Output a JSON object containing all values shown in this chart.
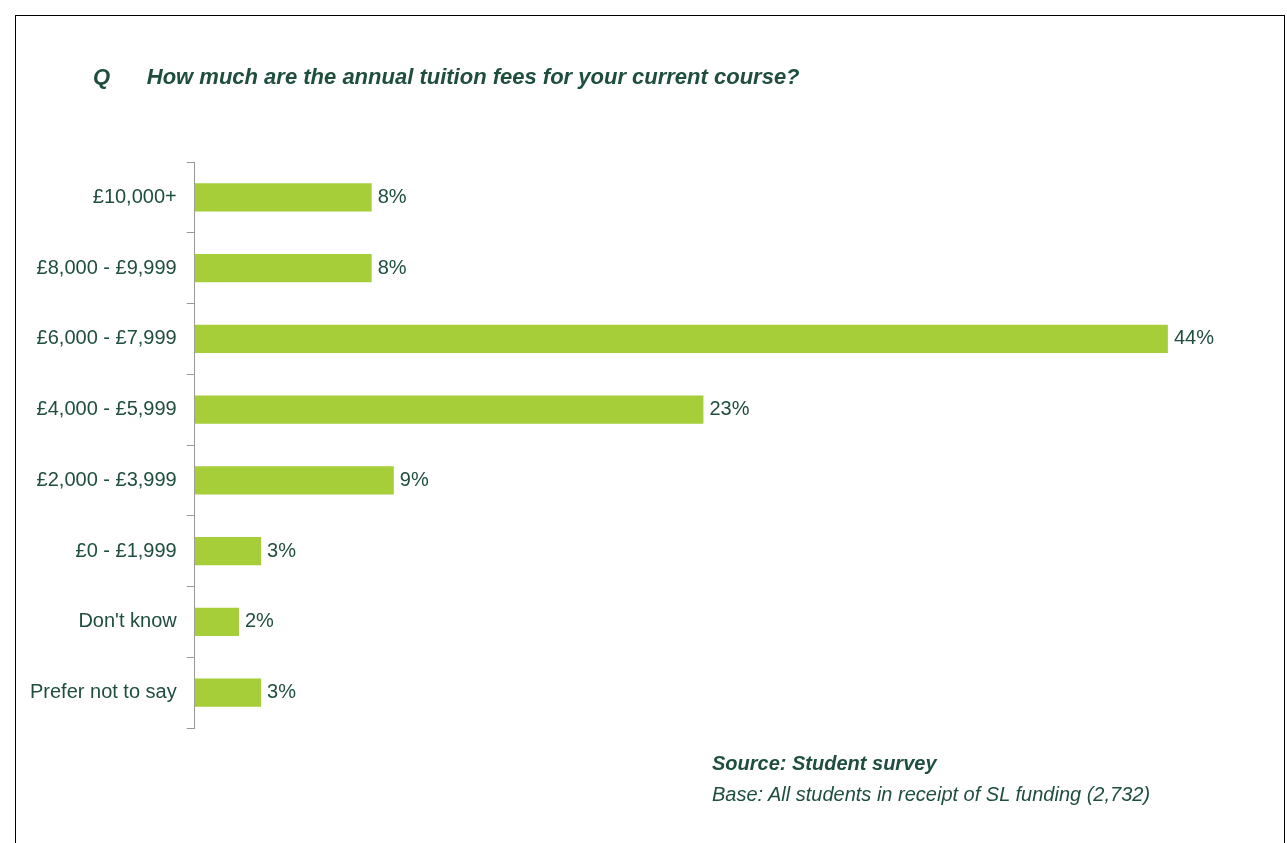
{
  "chart_data": {
    "type": "bar",
    "orientation": "horizontal",
    "title": "Q      How much are the annual tuition fees for your current course?",
    "categories": [
      "£10,000+",
      "£8,000 - £9,999",
      "£6,000 - £7,999",
      "£4,000 - £5,999",
      "£2,000 - £3,999",
      "£0 - £1,999",
      "Don't know",
      "Prefer not to say"
    ],
    "values": [
      8,
      8,
      44,
      23,
      9,
      3,
      2,
      3
    ],
    "value_labels": [
      "8%",
      "8%",
      "44%",
      "23%",
      "9%",
      "3%",
      "2%",
      "3%"
    ],
    "color": "#a6ce39",
    "annotations": [
      "Source: Student survey",
      "Base: All students in receipt of SL funding (2,732)"
    ]
  }
}
